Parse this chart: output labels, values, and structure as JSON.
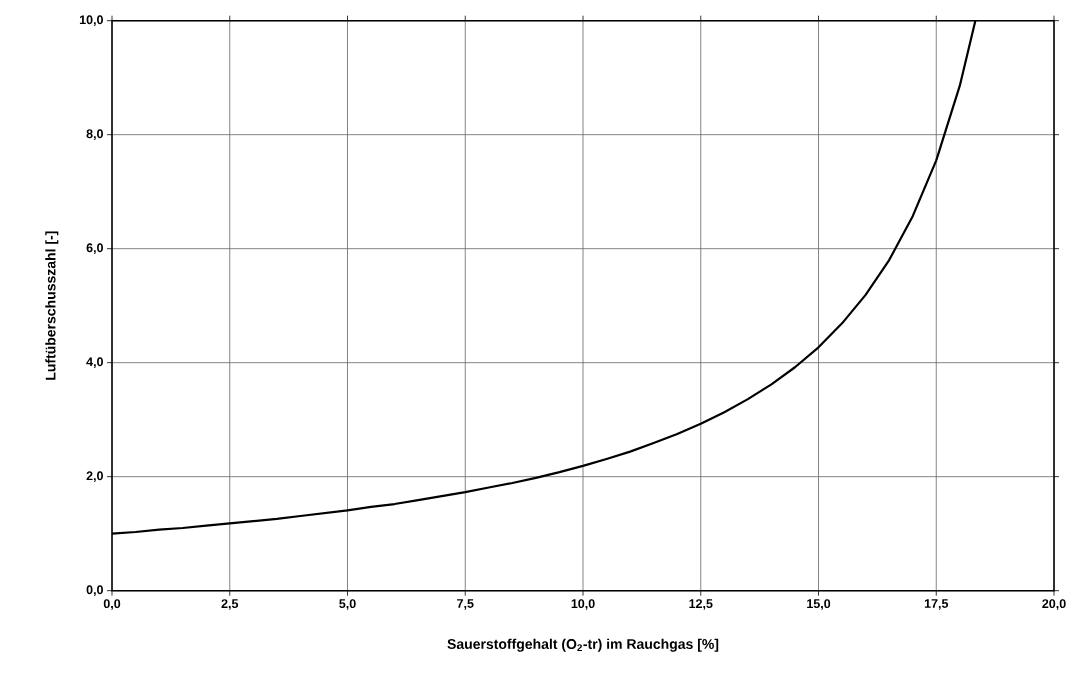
{
  "chart_data": {
    "type": "line",
    "xlabel": "Sauerstoffgehalt (O$_{2}$-tr) im Rauchgas [%]",
    "ylabel": "Luftüberschusszahl [-]",
    "x": [
      0,
      0.5,
      1,
      1.5,
      2,
      2.5,
      3,
      3.5,
      4,
      4.5,
      5,
      5.5,
      6,
      6.5,
      7,
      7.5,
      8,
      8.5,
      9,
      9.5,
      10,
      10.5,
      11,
      11.5,
      12,
      12.5,
      13,
      13.5,
      14,
      14.5,
      15,
      15.5,
      16,
      16.5,
      17,
      17.5,
      18,
      18.33
    ],
    "series": [
      {
        "color": "#000000",
        "values": [
          1.0,
          1.03,
          1.07,
          1.1,
          1.14,
          1.18,
          1.22,
          1.26,
          1.31,
          1.36,
          1.41,
          1.47,
          1.52,
          1.59,
          1.66,
          1.73,
          1.81,
          1.89,
          1.98,
          2.08,
          2.19,
          2.31,
          2.44,
          2.59,
          2.75,
          2.93,
          3.13,
          3.36,
          3.62,
          3.92,
          4.27,
          4.69,
          5.19,
          5.8,
          6.57,
          7.55,
          8.86,
          10.0
        ]
      }
    ],
    "xlim": [
      0,
      20
    ],
    "ylim": [
      0,
      10
    ],
    "xticks": [
      {
        "value": 0,
        "label": "0,0"
      },
      {
        "value": 2.5,
        "label": "2,5"
      },
      {
        "value": 5,
        "label": "5,0"
      },
      {
        "value": 7.5,
        "label": "7,5"
      },
      {
        "value": 10,
        "label": "10,0"
      },
      {
        "value": 12.5,
        "label": "12,5"
      },
      {
        "value": 15,
        "label": "15,0"
      },
      {
        "value": 17.5,
        "label": "17,5"
      },
      {
        "value": 20,
        "label": "20,0"
      }
    ],
    "yticks": [
      {
        "value": 0,
        "label": "0,0"
      },
      {
        "value": 2,
        "label": "2,0"
      },
      {
        "value": 4,
        "label": "4,0"
      },
      {
        "value": 6,
        "label": "6,0"
      },
      {
        "value": 8,
        "label": "8,0"
      },
      {
        "value": 10,
        "label": "10,0"
      }
    ],
    "grid": true,
    "marker": "none",
    "line_style": "solid"
  }
}
